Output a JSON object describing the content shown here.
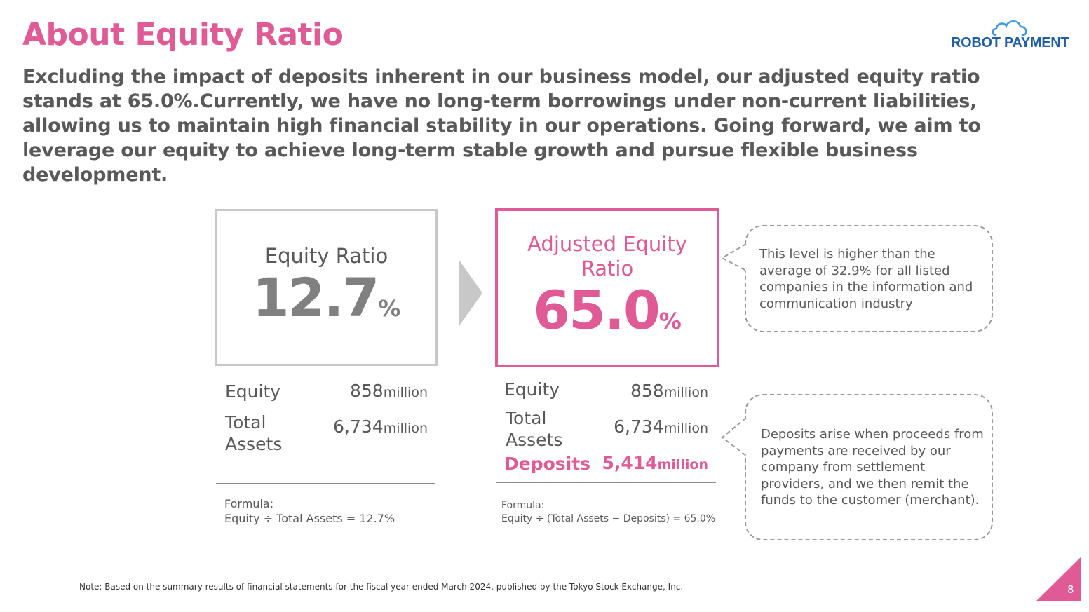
{
  "header": {
    "title": "About Equity Ratio",
    "logo_text": "ROBOT PAYMENT"
  },
  "lead_text": "Excluding the impact of deposits inherent in our business model, our adjusted equity ratio stands at 65.0%.Currently, we have no long-term borrowings under non-current liabilities, allowing us to maintain high financial stability in our operations. Going forward, we aim to leverage our equity to achieve long-term stable growth and pursue flexible business development.",
  "equity_ratio": {
    "label": "Equity Ratio",
    "value": "12.7",
    "unit": "%",
    "rows": [
      {
        "label": "Equity",
        "value": "858",
        "unit": "million"
      },
      {
        "label": "Total Assets",
        "value": "6,734",
        "unit": "million"
      }
    ],
    "formula_label": "Formula:",
    "formula": "Equity ÷ Total Assets = 12.7%"
  },
  "adjusted_equity_ratio": {
    "label": "Adjusted Equity Ratio",
    "value": "65.0",
    "unit": "%",
    "rows": [
      {
        "label": "Equity",
        "value": "858",
        "unit": "million"
      },
      {
        "label": "Total Assets",
        "value": "6,734",
        "unit": "million"
      },
      {
        "label": "Deposits",
        "value": "5,414",
        "unit": "million"
      }
    ],
    "formula_label": "Formula:",
    "formula": "Equity ÷ (Total Assets − Deposits) = 65.0%"
  },
  "callouts": {
    "industry_average": "This level is higher than the average of 32.9% for all listed companies in the information and communication industry",
    "deposits_explanation": "Deposits arise when proceeds from payments are received by our company from settlement providers, and we then remit the funds to the customer (merchant)."
  },
  "footer": {
    "note": "Note: Based on the summary results of financial statements for the fiscal year ended March 2024, published by the Tokyo Stock Exchange, Inc.",
    "page_number": "8"
  },
  "colors": {
    "accent": "#e05a96",
    "text": "#595959",
    "logo_blue": "#1f5fa8"
  },
  "icons": [
    "cloud-icon",
    "arrow-right-icon"
  ]
}
